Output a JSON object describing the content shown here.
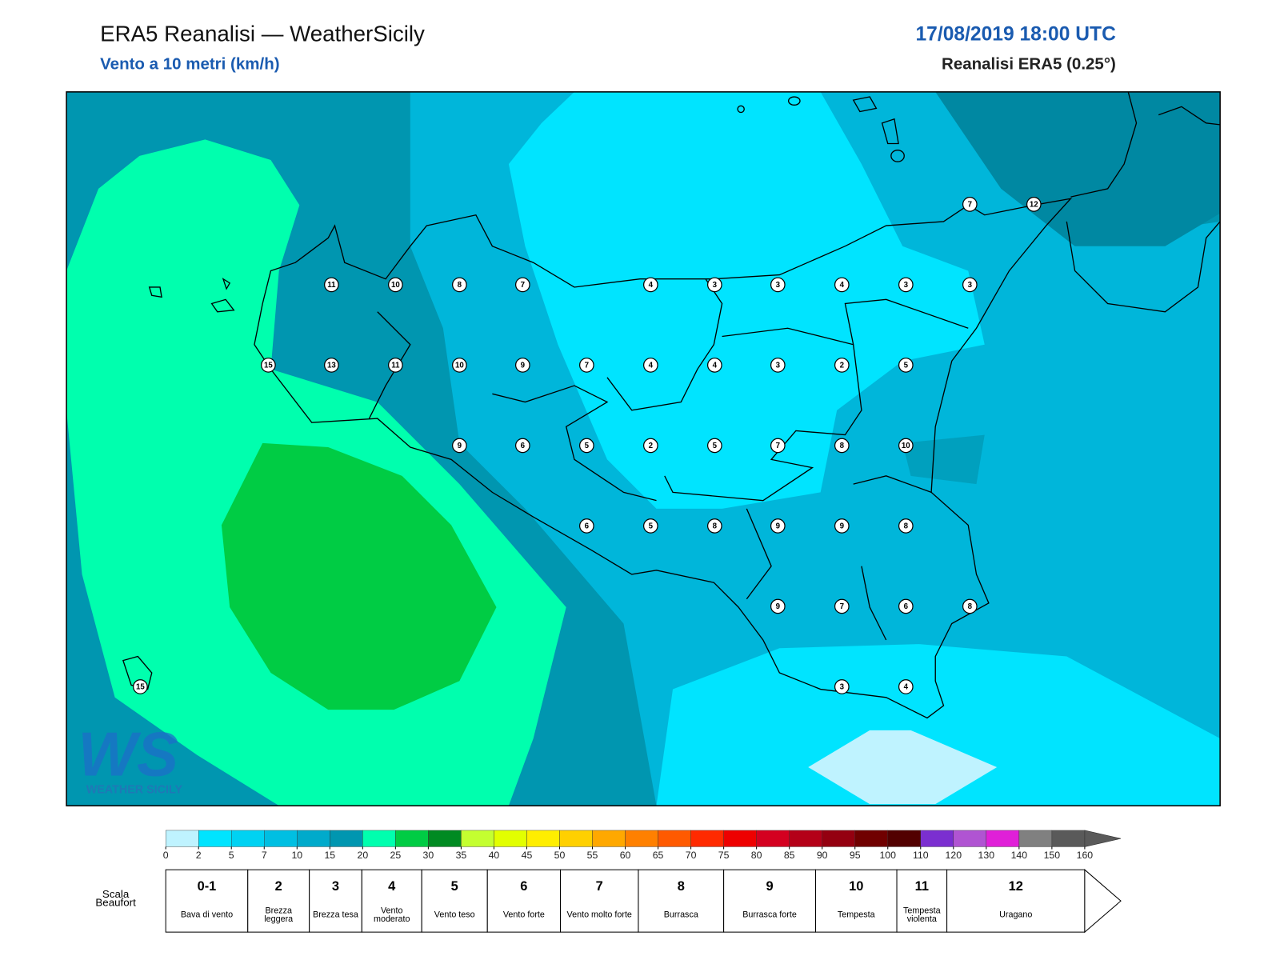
{
  "header": {
    "title": "ERA5 Reanalisi — WeatherSicily",
    "subtitle": "Vento a 10 metri (km/h)",
    "datetime": "17/08/2019 18:00 UTC",
    "source": "Reanalisi ERA5 (0.25°)"
  },
  "map": {
    "station_values": [
      7,
      12,
      11,
      10,
      8,
      7,
      4,
      3,
      3,
      4,
      3,
      3,
      15,
      13,
      11,
      10,
      9,
      7,
      4,
      4,
      3,
      2,
      5,
      9,
      6,
      5,
      2,
      5,
      7,
      8,
      10,
      6,
      5,
      8,
      9,
      9,
      8,
      9,
      7,
      6,
      8,
      3,
      4,
      15
    ]
  },
  "logo": {
    "mark": "WS",
    "text": "WEATHER SICILY"
  },
  "colorbar": {
    "ticks": [
      0,
      2,
      5,
      7,
      10,
      15,
      20,
      25,
      30,
      35,
      40,
      45,
      50,
      55,
      60,
      65,
      70,
      75,
      80,
      85,
      90,
      95,
      100,
      110,
      120,
      130,
      140,
      150,
      160
    ],
    "colors": [
      "#bff3ff",
      "#00e4ff",
      "#00d2f2",
      "#00bfe2",
      "#00aacb",
      "#0096b0",
      "#00ffae",
      "#00cc44",
      "#008a22",
      "#c4ff30",
      "#e2ff00",
      "#ffee00",
      "#ffd000",
      "#ffa800",
      "#ff8000",
      "#ff5a00",
      "#ff2a00",
      "#ee0000",
      "#d40020",
      "#b40018",
      "#940010",
      "#700000",
      "#520000",
      "#7b2fd0",
      "#b054d2",
      "#e020d8",
      "#808080",
      "#5a5a5a",
      "#000000",
      "#8a4a28",
      "#c88040"
    ]
  },
  "beaufort": {
    "label": "Scala Beaufort",
    "forces": [
      {
        "force": "0-1",
        "description": "Bava di vento"
      },
      {
        "force": 2,
        "description": "Brezza leggera"
      },
      {
        "force": 3,
        "description": "Brezza tesa"
      },
      {
        "force": 4,
        "description": "Vento moderato"
      },
      {
        "force": 5,
        "description": "Vento teso"
      },
      {
        "force": 6,
        "description": "Vento forte"
      },
      {
        "force": 7,
        "description": "Vento molto forte"
      },
      {
        "force": 8,
        "description": "Burrasca"
      },
      {
        "force": 9,
        "description": "Burrasca forte"
      },
      {
        "force": 10,
        "description": "Tempesta"
      },
      {
        "force": 11,
        "description": "Tempesta violenta"
      },
      {
        "force": 12,
        "description": "Uragano"
      }
    ]
  }
}
